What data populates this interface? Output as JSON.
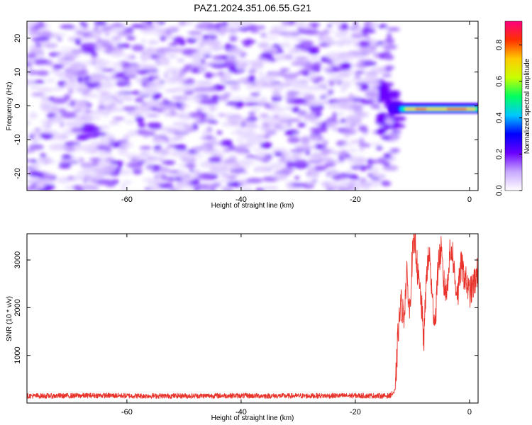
{
  "title": "PAZ1.2024.351.06.55.G21",
  "colors": {
    "snr_line": "#e8322a",
    "axis": "#000000"
  },
  "chart_data": [
    {
      "type": "heatmap",
      "title": "PAZ1.2024.351.06.55.G21",
      "xlabel": "Height of straight line (km)",
      "ylabel": "Frequency (Hz)",
      "xlim": [
        -77.5,
        1.5
      ],
      "ylim": [
        -25,
        25
      ],
      "xticks": [
        -60,
        -40,
        -20,
        0
      ],
      "yticks": [
        -20,
        -10,
        0,
        10,
        20
      ],
      "xtick_labels": [
        "-60",
        "-40",
        "-20",
        "0"
      ],
      "ytick_labels": [
        "-20",
        "-10",
        "0",
        "10",
        "20"
      ],
      "colorbar": {
        "label": "Normalized spectral amplitude",
        "range": [
          0,
          0.93
        ],
        "ticks": [
          0.0,
          0.2,
          0.4,
          0.6,
          0.8
        ],
        "tick_labels": [
          "0.0",
          "0.2",
          "0.4",
          "0.6",
          "0.8"
        ],
        "colormap": [
          "#ffffff",
          "#c8a8ff",
          "#6a00ff",
          "#0000ff",
          "#00c8ff",
          "#00ff60",
          "#c8ff00",
          "#ffcc00",
          "#ff3000",
          "#ff0080"
        ]
      },
      "features": [
        {
          "description": "weak noise texture",
          "x_range": [
            -77.5,
            -13
          ],
          "y_range": [
            -25,
            25
          ],
          "amplitude": 0.1
        },
        {
          "description": "strong signal band",
          "x_range": [
            -13,
            1.5
          ],
          "frequency": -1,
          "peak_amplitude": 0.9
        }
      ]
    },
    {
      "type": "line",
      "xlabel": "Height of straight line (km)",
      "ylabel": "SNR (10 * v/v)",
      "xlim": [
        -77.5,
        1.5
      ],
      "ylim": [
        0,
        3550
      ],
      "xticks": [
        -60,
        -40,
        -20,
        0
      ],
      "yticks": [
        1000,
        2000,
        3000
      ],
      "xtick_labels": [
        "-60",
        "-40",
        "-20",
        "0"
      ],
      "ytick_labels": [
        "1000",
        "2000",
        "3000"
      ],
      "series": [
        {
          "x": [
            -77.5,
            -72,
            -65,
            -58,
            -50,
            -42,
            -35,
            -28,
            -21,
            -14,
            -13,
            -12.5,
            -12,
            -11.5,
            -11,
            -10.5,
            -10,
            -9.5,
            -9,
            -8.5,
            -8,
            -7.5,
            -7,
            -6.5,
            -6,
            -5.5,
            -5,
            -4.5,
            -4,
            -3.5,
            -3,
            -2.5,
            -2,
            -1.5,
            -1,
            -0.5,
            0,
            0.5,
            1,
            1.5
          ],
          "y": [
            150,
            150,
            160,
            150,
            150,
            155,
            150,
            150,
            155,
            150,
            250,
            1500,
            2100,
            1800,
            2700,
            1900,
            3100,
            3400,
            2600,
            2200,
            1300,
            2800,
            3100,
            2100,
            1700,
            2900,
            3200,
            2500,
            2300,
            3100,
            3200,
            2500,
            2300,
            2900,
            2700,
            2500,
            2300,
            2400,
            2600,
            2800
          ]
        }
      ]
    }
  ]
}
